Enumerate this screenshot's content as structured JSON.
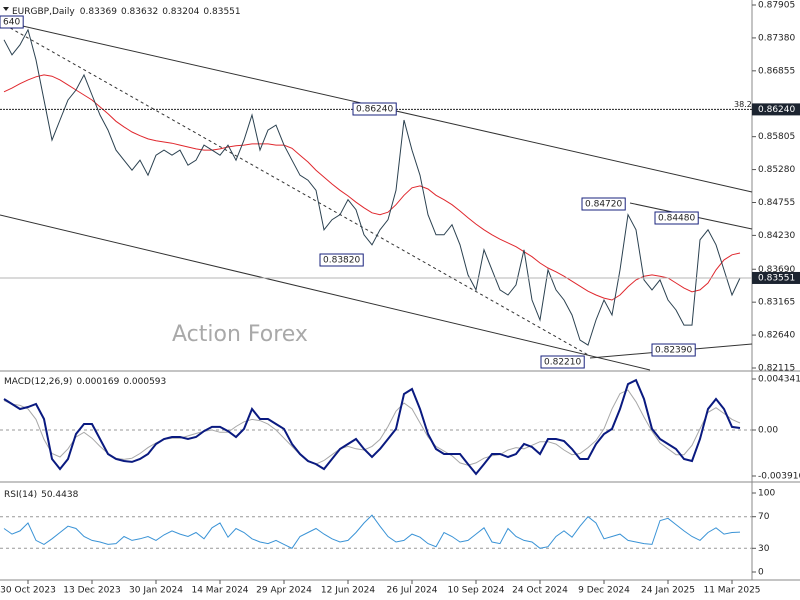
{
  "chart_data": [
    {
      "type": "line",
      "title": "EURGBP,Daily",
      "ohlc": [
        0.83369,
        0.83632,
        0.83204,
        0.83551
      ],
      "ylim": [
        0.82115,
        0.87905
      ],
      "yticks": [
        0.87905,
        {
          "value": 0.8738,
          "label": "0.87380"
        },
        0.86855,
        0.85805,
        {
          "value": 0.8528,
          "label": "0.85280"
        },
        0.84755,
        {
          "value": 0.8423,
          "label": "0.84230"
        },
        {
          "value": 0.8369,
          "label": "0.83690"
        },
        0.83165,
        {
          "value": 0.8264,
          "label": "0.82640"
        },
        0.82115
      ],
      "series": [
        {
          "color": "#2b4150",
          "values": [
            0.8735,
            0.8711,
            0.8727,
            0.8751,
            0.8703,
            0.8639,
            0.8575,
            0.8607,
            0.8639,
            0.8655,
            0.8679,
            0.8647,
            0.8615,
            0.8591,
            0.8559,
            0.8543,
            0.8527,
            0.8543,
            0.8519,
            0.8551,
            0.8559,
            0.8551,
            0.8559,
            0.8535,
            0.8543,
            0.8567,
            0.8559,
            0.8551,
            0.8567,
            0.8543,
            0.8575,
            0.8615,
            0.8559,
            0.8591,
            0.8599,
            0.8567,
            0.8543,
            0.8519,
            0.8511,
            0.8495,
            0.8432,
            0.8448,
            0.8456,
            0.848,
            0.8464,
            0.8424,
            0.8408,
            0.8432,
            0.8448,
            0.8495,
            0.8607,
            0.8559,
            0.8519,
            0.8456,
            0.8424,
            0.8424,
            0.844,
            0.8408,
            0.836,
            0.8336,
            0.84,
            0.8368,
            0.8336,
            0.8328,
            0.8344,
            0.84,
            0.832,
            0.8288,
            0.8368,
            0.8336,
            0.832,
            0.8296,
            0.8256,
            0.8248,
            0.8288,
            0.832,
            0.8296,
            0.8368,
            0.8456,
            0.8432,
            0.8352,
            0.8336,
            0.8352,
            0.832,
            0.8304,
            0.828,
            0.828,
            0.8416,
            0.8432,
            0.8408,
            0.8368,
            0.8328,
            0.8355
          ]
        },
        {
          "color": "#e0282e",
          "values": [
            0.8652,
            0.8658,
            0.8665,
            0.8671,
            0.8676,
            0.8679,
            0.8677,
            0.8671,
            0.8663,
            0.8655,
            0.8647,
            0.8639,
            0.8628,
            0.8617,
            0.8605,
            0.8596,
            0.8588,
            0.8582,
            0.8577,
            0.8574,
            0.8572,
            0.857,
            0.8567,
            0.8564,
            0.8561,
            0.8559,
            0.8559,
            0.8561,
            0.8564,
            0.8566,
            0.8567,
            0.8569,
            0.8569,
            0.8569,
            0.8567,
            0.8567,
            0.8562,
            0.8551,
            0.854,
            0.8527,
            0.8516,
            0.8505,
            0.8495,
            0.8486,
            0.8476,
            0.8467,
            0.8459,
            0.8456,
            0.846,
            0.8472,
            0.8487,
            0.8499,
            0.8502,
            0.8497,
            0.8487,
            0.848,
            0.8472,
            0.8462,
            0.8451,
            0.8441,
            0.8432,
            0.8424,
            0.8417,
            0.8411,
            0.8405,
            0.8397,
            0.8389,
            0.8379,
            0.8371,
            0.8365,
            0.8358,
            0.835,
            0.8342,
            0.8334,
            0.8328,
            0.8323,
            0.832,
            0.8328,
            0.8341,
            0.8352,
            0.8358,
            0.836,
            0.8358,
            0.8355,
            0.8347,
            0.8339,
            0.8333,
            0.8336,
            0.8347,
            0.8368,
            0.8384,
            0.8392,
            0.8395
          ]
        }
      ],
      "level": {
        "value": 0.8624,
        "label": "0.86240",
        "ratio": 38.2
      },
      "annotations": [
        "0.86240",
        "0.84720",
        "0.84480",
        "0.83820",
        "0.82210",
        "0.82390",
        "640"
      ],
      "watermark": "Action Forex"
    },
    {
      "type": "line",
      "title": "MACD(12,26,9)",
      "readings": [
        0.000169,
        0.000593
      ],
      "ylim": [
        -0.003916,
        0.004341
      ],
      "yticks": [
        0.004341,
        {
          "value": 0,
          "label": "0.00"
        },
        -0.003916
      ],
      "grid": true,
      "series": [
        {
          "color": "#0a1a80",
          "values": [
            0.00264,
            0.00221,
            0.00179,
            0.00196,
            0.00221,
            0.00094,
            -0.00247,
            -0.00332,
            -0.00247,
            -0.00034,
            0.00051,
            0.00051,
            -0.00077,
            -0.00204,
            -0.00247,
            -0.00264,
            -0.00272,
            -0.00247,
            -0.00204,
            -0.00119,
            -0.00077,
            -0.0006,
            -0.0006,
            -0.00077,
            -0.0006,
            -9e-05,
            0.00026,
            0.00026,
            -9e-05,
            -0.0006,
            9e-05,
            0.00179,
            0.00094,
            0.00094,
            0.00051,
            9e-05,
            -0.00119,
            -0.00204,
            -0.00264,
            -0.0029,
            -0.00332,
            -0.00247,
            -0.00162,
            -0.00119,
            -0.00077,
            -0.00162,
            -0.0023,
            -0.00162,
            -0.00077,
            9e-05,
            0.00306,
            0.00349,
            0.00179,
            -0.00034,
            -0.00162,
            -0.00204,
            -0.00204,
            -0.00204,
            -0.0029,
            -0.00374,
            -0.0029,
            -0.00204,
            -0.00204,
            -0.0023,
            -0.00204,
            -0.00119,
            -0.00145,
            -0.00204,
            -0.00077,
            -0.00077,
            -0.00094,
            -0.00162,
            -0.00247,
            -0.00247,
            -0.00119,
            -0.00034,
            9e-05,
            0.00179,
            0.00391,
            0.00425,
            0.00264,
            9e-05,
            -0.00077,
            -0.00119,
            -0.00162,
            -0.00247,
            -0.00264,
            -0.00077,
            0.00179,
            0.00264,
            0.00179,
            0.00026,
            0.000169
          ]
        },
        {
          "color": "#a8a8a8",
          "values": [
            0.0025,
            0.0022,
            0.0021,
            0.0018,
            0.0009,
            -0.0008,
            -0.002,
            -0.0023,
            -0.0016,
            -0.0006,
            -0.0002,
            -0.0007,
            -0.0014,
            -0.002,
            -0.0024,
            -0.0025,
            -0.0024,
            -0.002,
            -0.0015,
            -0.0011,
            -0.0008,
            -0.0007,
            -0.0007,
            -0.0005,
            -0.0003,
            -0.0001,
            0,
            -0.0002,
            -0.0002,
            0.0003,
            0.0007,
            0.0009,
            0.0008,
            0.0005,
            0,
            -0.0007,
            -0.0014,
            -0.0021,
            -0.0027,
            -0.0029,
            -0.0026,
            -0.0021,
            -0.0016,
            -0.0014,
            -0.0016,
            -0.0017,
            -0.0014,
            -0.0008,
            0.0003,
            0.0016,
            0.0023,
            0.0018,
            0.0006,
            -0.0006,
            -0.0014,
            -0.0018,
            -0.0022,
            -0.0028,
            -0.003,
            -0.0028,
            -0.0024,
            -0.0022,
            -0.0021,
            -0.0017,
            -0.0015,
            -0.0016,
            -0.0013,
            -0.001,
            -0.001,
            -0.0012,
            -0.0017,
            -0.0021,
            -0.002,
            -0.0015,
            -0.0009,
            0.0001,
            0.0018,
            0.0031,
            0.0034,
            0.0024,
            0.0011,
            -0.0001,
            -0.0011,
            -0.0016,
            -0.0021,
            -0.0021,
            -0.0013,
            0.0001,
            0.0015,
            0.0019,
            0.0014,
            0.0009,
            0.000593
          ]
        }
      ]
    },
    {
      "type": "line",
      "title": "RSI(14)",
      "readings": [
        50.4438
      ],
      "ylim": [
        0,
        100
      ],
      "yticks": [
        100,
        70,
        30,
        0
      ],
      "grid": true,
      "series": [
        {
          "color": "#3a93d6",
          "values": [
            55,
            48,
            52,
            62,
            40,
            35,
            42,
            50,
            58,
            55,
            45,
            40,
            38,
            35,
            36,
            45,
            40,
            42,
            45,
            40,
            47,
            52,
            48,
            45,
            50,
            42,
            56,
            62,
            44,
            55,
            50,
            42,
            38,
            36,
            40,
            35,
            30,
            45,
            50,
            55,
            48,
            42,
            38,
            40,
            50,
            62,
            72,
            58,
            45,
            38,
            40,
            48,
            44,
            36,
            32,
            50,
            45,
            38,
            40,
            48,
            56,
            38,
            36,
            55,
            45,
            40,
            38,
            30,
            32,
            45,
            52,
            44,
            58,
            70,
            62,
            42,
            45,
            48,
            40,
            38,
            36,
            35,
            65,
            68,
            60,
            52,
            45,
            40,
            50,
            56,
            48,
            50,
            50.4438
          ]
        }
      ],
      "categories": [
        null,
        null,
        null,
        "30 Oct 2023",
        null,
        null,
        null,
        null,
        null,
        null,
        null,
        "13 Dec 2023",
        null,
        null,
        null,
        null,
        null,
        null,
        null,
        "30 Jan 2024",
        null,
        null,
        null,
        null,
        null,
        null,
        null,
        "14 Mar 2024",
        null,
        null,
        null,
        null,
        null,
        null,
        null,
        "29 Apr 2024",
        null,
        null,
        null,
        null,
        null,
        null,
        null,
        "12 Jun 2024",
        null,
        null,
        null,
        null,
        null,
        null,
        null,
        "26 Jul 2024",
        null,
        null,
        null,
        null,
        null,
        null,
        null,
        "10 Sep 2024",
        null,
        null,
        null,
        null,
        null,
        null,
        null,
        "24 Oct 2024",
        null,
        null,
        null,
        null,
        null,
        null,
        null,
        "9 Dec 2024",
        null,
        null,
        null,
        null,
        null,
        null,
        null,
        "24 Jan 2025",
        null,
        null,
        null,
        null,
        null,
        null,
        null,
        "11 Mar 2025",
        null
      ]
    }
  ]
}
